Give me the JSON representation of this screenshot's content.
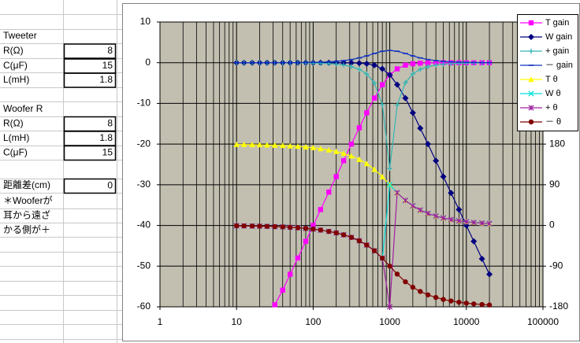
{
  "sheet": {
    "tweeter_title": "Tweeter",
    "tweeter_rows": [
      {
        "label": "R(Ω)",
        "value": 8
      },
      {
        "label": "C(μF)",
        "value": 15
      },
      {
        "label": "L(mH)",
        "value": 1.8
      }
    ],
    "woofer_title": "Woofer R",
    "woofer_rows": [
      {
        "label": "R(Ω)",
        "value": 8
      },
      {
        "label": "L(mH)",
        "value": 1.8
      },
      {
        "label": "C(μF)",
        "value": 15
      }
    ],
    "distance": {
      "label": "距離差(cm)",
      "value": 0
    },
    "note": [
      "＊Wooferが",
      "耳から遠ざ",
      "かる側が＋"
    ]
  },
  "chart_data": {
    "type": "line",
    "xscale": "log",
    "x": [
      10,
      12.5,
      16,
      20,
      25,
      31.5,
      40,
      50,
      63,
      80,
      100,
      125,
      160,
      200,
      250,
      315,
      400,
      500,
      630,
      800,
      1000,
      1250,
      1600,
      2000,
      2500,
      3150,
      4000,
      5000,
      6300,
      8000,
      10000,
      12500,
      16000,
      20000
    ],
    "xlim": [
      1,
      100000
    ],
    "xticks": [
      1,
      10,
      100,
      1000,
      10000,
      100000
    ],
    "ylim": [
      -60,
      10
    ],
    "yticks": [
      10,
      0,
      -10,
      -20,
      -30,
      -40,
      -50,
      -60
    ],
    "y2lim": [
      -180,
      450
    ],
    "y2ticks": [
      180,
      90,
      0,
      -90,
      -180
    ],
    "grid": true,
    "minor_grid": true,
    "legend": "right",
    "series": [
      {
        "name": "T gain",
        "color": "#ff00ff",
        "marker": "square",
        "values": [
          null,
          null,
          null,
          null,
          null,
          -59.5,
          -55.9,
          -52,
          -48,
          -43.9,
          -40,
          -36.1,
          -31.8,
          -28,
          -24.1,
          -20,
          -16,
          -12.3,
          -8.7,
          -5.4,
          -3,
          -1.5,
          -0.6,
          -0.26,
          -0.11,
          -0.04,
          -0.02,
          0,
          0,
          0,
          0,
          0,
          0,
          0
        ]
      },
      {
        "name": "W gain",
        "color": "#000080",
        "marker": "diamond",
        "values": [
          0,
          0,
          0,
          0,
          0,
          0,
          0,
          0,
          0,
          0,
          0,
          0,
          0,
          -0.01,
          -0.02,
          -0.04,
          -0.11,
          -0.26,
          -0.6,
          -1.5,
          -3,
          -5.4,
          -8.7,
          -12.3,
          -16.1,
          -20,
          -24.1,
          -28,
          -32,
          -36.1,
          -40,
          -43.9,
          -48.2,
          -52
        ]
      },
      {
        "name": "+ gain",
        "color": "#33b5b5",
        "marker": "plus",
        "values": [
          0,
          0,
          0,
          0,
          -0.01,
          -0.01,
          -0.01,
          -0.02,
          -0.03,
          -0.06,
          -0.09,
          -0.14,
          -0.22,
          -0.35,
          -0.58,
          -0.95,
          -1.63,
          -2.76,
          -5,
          -10.3,
          -26,
          -10.4,
          -4.9,
          -2.76,
          -1.63,
          -0.97,
          -0.58,
          -0.36,
          -0.22,
          -0.14,
          -0.09,
          -0.06,
          -0.03,
          -0.02
        ]
      },
      {
        "name": "－ gain",
        "color": "#1030c0",
        "marker": "minus",
        "values": [
          0,
          0,
          0,
          0,
          0.01,
          0.01,
          0.01,
          0.02,
          0.03,
          0.06,
          0.09,
          0.13,
          0.22,
          0.33,
          0.51,
          0.78,
          1.18,
          1.67,
          2.27,
          2.82,
          3.01,
          2.82,
          2.27,
          1.67,
          1.18,
          0.78,
          0.51,
          0.33,
          0.22,
          0.13,
          0.09,
          0.06,
          0.03,
          0.02
        ]
      },
      {
        "name": "T θ",
        "color": "#ffff00",
        "marker": "triangle",
        "axis": "y2",
        "values": [
          179.2,
          179,
          178.7,
          178.4,
          178,
          177.4,
          176.8,
          175.9,
          174.9,
          173.5,
          171.9,
          169.8,
          166.8,
          163.6,
          159.3,
          153.7,
          146.1,
          136.7,
          124.1,
          107.6,
          90,
          72.4,
          55.4,
          43.3,
          34,
          26.5,
          20.7,
          16.4,
          13,
          10.2,
          8.1,
          6.5,
          5.1,
          4.1
        ]
      },
      {
        "name": "W θ",
        "color": "#00e0e0",
        "marker": "x",
        "axis": "y2",
        "values": [
          -0.8,
          -1,
          -1.3,
          -1.6,
          -2,
          -2.6,
          -3.2,
          -4.1,
          -5.1,
          -6.5,
          -8.1,
          -10.2,
          -13.2,
          -16.4,
          -20.7,
          -26.3,
          -33.9,
          -43.3,
          -55.9,
          -72.4,
          90,
          72.4,
          55.4,
          43.3,
          34,
          26.5,
          20.7,
          16.4,
          13,
          10.2,
          8.1,
          6.5,
          5.1,
          4.1
        ]
      },
      {
        "name": "+ θ",
        "color": "#a020a0",
        "marker": "star",
        "axis": "y2",
        "values": [
          -0.8,
          -1,
          -1.3,
          -1.6,
          -2,
          -2.6,
          -3.2,
          -4.1,
          -5.1,
          -6.5,
          -8.1,
          -10.2,
          -13.2,
          -16.4,
          -20.7,
          -26.3,
          -33.9,
          -43.3,
          -55.9,
          -72.4,
          -180,
          72.4,
          55.4,
          43.3,
          34,
          26.5,
          20.7,
          16.4,
          13,
          10.2,
          8.1,
          6.5,
          5.1,
          4.1
        ]
      },
      {
        "name": "－ θ",
        "color": "#800000",
        "marker": "circle",
        "axis": "y2",
        "values": [
          -0.8,
          -1,
          -1.3,
          -1.6,
          -2,
          -2.6,
          -3.2,
          -4.1,
          -5.1,
          -6.5,
          -8.1,
          -10.2,
          -13.2,
          -16.4,
          -20.7,
          -26.3,
          -33.9,
          -43.3,
          -55.9,
          -72.4,
          -90,
          -107.6,
          -124.6,
          -136.7,
          -146,
          -153.5,
          -159.3,
          -163.6,
          -167,
          -169.8,
          -171.9,
          -173.5,
          -174.9,
          -175.9
        ]
      }
    ]
  }
}
